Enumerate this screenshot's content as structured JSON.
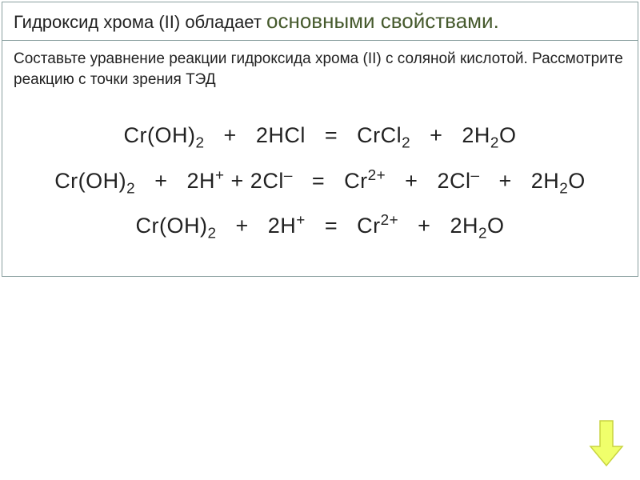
{
  "colors": {
    "border": "#8aa0a0",
    "text": "#222222",
    "accent": "#465a2d",
    "arrow_fill": "#f0ff6b",
    "arrow_stroke": "#c8d440",
    "background": "#ffffff"
  },
  "typography": {
    "title_plain_fontsize": 22,
    "title_accent_fontsize": 26,
    "task_fontsize": 19,
    "equation_fontsize": 27,
    "font_family": "Arial"
  },
  "title": {
    "plain": "Гидроксид хрома (II) обладает ",
    "accent": "основными свойствами."
  },
  "task": {
    "text": "Составьте уравнение реакции гидроксида хрома (II) с соляной кислотой. Рассмотрите реакцию с точки зрения ТЭД"
  },
  "equations": [
    {
      "tokens": [
        "Cr(OH)",
        "_2",
        "   +   2HCl   =   CrCl",
        "_2",
        "   +   2H",
        "_2",
        "O"
      ]
    },
    {
      "tokens": [
        "Cr(OH)",
        "_2",
        "   +   2H",
        "^+",
        " + 2Cl",
        "^–",
        "   =   Cr",
        "^2+",
        "   +   2Cl",
        "^–",
        "   +   2H",
        "_2",
        "O"
      ]
    },
    {
      "tokens": [
        "Cr(OH)",
        "_2",
        "   +   2H",
        "^+",
        "   =   Cr",
        "^2+",
        "   +   2H",
        "_2",
        "O"
      ]
    }
  ],
  "arrow": {
    "name": "down-arrow-icon",
    "fill": "#f0ff6b",
    "stroke": "#c8d440"
  }
}
